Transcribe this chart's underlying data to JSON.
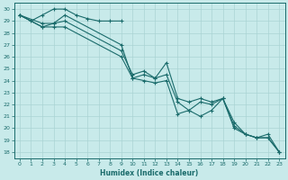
{
  "xlabel": "Humidex (Indice chaleur)",
  "xlim": [
    -0.5,
    23.5
  ],
  "ylim": [
    17.5,
    30.5
  ],
  "xticks": [
    0,
    1,
    2,
    3,
    4,
    5,
    6,
    7,
    8,
    9,
    10,
    11,
    12,
    13,
    14,
    15,
    16,
    17,
    18,
    19,
    20,
    21,
    22,
    23
  ],
  "yticks": [
    18,
    19,
    20,
    21,
    22,
    23,
    24,
    25,
    26,
    27,
    28,
    29,
    30
  ],
  "background_color": "#c8eaea",
  "grid_color": "#aad4d4",
  "line_color": "#1a6b6b",
  "lines": [
    {
      "x": [
        0,
        1,
        2,
        3,
        4,
        5,
        6,
        7,
        8,
        9
      ],
      "y": [
        29.5,
        29.0,
        29.5,
        30.0,
        30.0,
        29.5,
        29.2,
        29.0,
        29.0,
        29.0
      ]
    },
    {
      "x": [
        0,
        2,
        3,
        4,
        9,
        10,
        11,
        12,
        13,
        14,
        15,
        16,
        17,
        18,
        19,
        20,
        21,
        22,
        23
      ],
      "y": [
        29.5,
        28.8,
        28.8,
        29.5,
        27.0,
        24.2,
        24.5,
        24.2,
        25.5,
        22.5,
        22.2,
        22.5,
        22.2,
        22.5,
        20.0,
        19.5,
        19.2,
        19.2,
        18.0
      ]
    },
    {
      "x": [
        0,
        2,
        3,
        4,
        9,
        10,
        11,
        12,
        13,
        14,
        15,
        16,
        17,
        18,
        19,
        20,
        21,
        22,
        23
      ],
      "y": [
        29.5,
        28.5,
        28.8,
        29.0,
        26.5,
        24.5,
        24.8,
        24.2,
        24.5,
        22.2,
        21.5,
        22.2,
        22.0,
        22.5,
        20.5,
        19.5,
        19.2,
        19.5,
        18.0
      ]
    },
    {
      "x": [
        0,
        2,
        3,
        4,
        9,
        10,
        11,
        12,
        13,
        14,
        15,
        16,
        17,
        18,
        19,
        20,
        21,
        22,
        23
      ],
      "y": [
        29.5,
        28.5,
        28.5,
        28.5,
        26.0,
        24.2,
        24.0,
        23.8,
        24.0,
        21.2,
        21.5,
        21.0,
        21.5,
        22.5,
        20.2,
        19.5,
        19.2,
        19.2,
        18.0
      ]
    }
  ]
}
